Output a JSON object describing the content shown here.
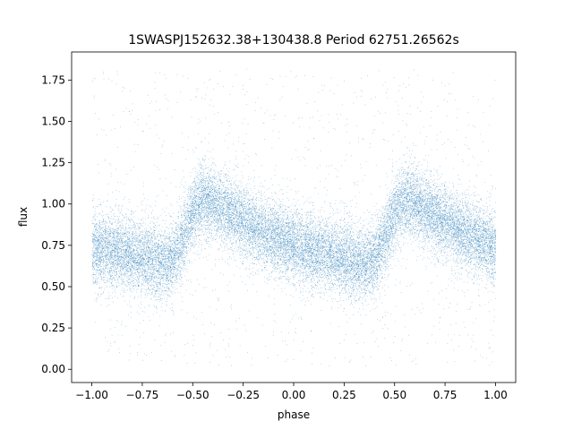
{
  "chart_data": {
    "type": "scatter",
    "title": "1SWASPJ152632.38+130438.8 Period 62751.26562s",
    "xlabel": "phase",
    "ylabel": "flux",
    "xlim": [
      -1.1,
      1.1
    ],
    "ylim": [
      -0.08,
      1.92
    ],
    "xticks": [
      -1.0,
      -0.75,
      -0.5,
      -0.25,
      0.0,
      0.25,
      0.5,
      0.75,
      1.0
    ],
    "xtick_labels": [
      "−1.00",
      "−0.75",
      "−0.50",
      "−0.25",
      "0.00",
      "0.25",
      "0.50",
      "0.75",
      "1.00"
    ],
    "yticks": [
      0.0,
      0.25,
      0.5,
      0.75,
      1.0,
      1.25,
      1.5,
      1.75
    ],
    "ytick_labels": [
      "0.00",
      "0.25",
      "0.50",
      "0.75",
      "1.00",
      "1.25",
      "1.50",
      "1.75"
    ],
    "grid": false,
    "marker_color": "#1f77b4",
    "series": [
      {
        "phase_curve": {
          "x": [
            -1.0,
            -0.9,
            -0.8,
            -0.7,
            -0.65,
            -0.6,
            -0.55,
            -0.5,
            -0.45,
            -0.4,
            -0.3,
            -0.2,
            -0.1,
            0.0,
            0.1,
            0.2,
            0.3,
            0.35,
            0.4,
            0.45,
            0.5,
            0.55,
            0.6,
            0.7,
            0.8,
            0.9,
            1.0
          ],
          "y": [
            0.73,
            0.72,
            0.7,
            0.66,
            0.64,
            0.67,
            0.8,
            0.95,
            1.03,
            1.0,
            0.93,
            0.86,
            0.8,
            0.75,
            0.72,
            0.69,
            0.66,
            0.64,
            0.67,
            0.8,
            0.95,
            1.03,
            1.0,
            0.93,
            0.86,
            0.8,
            0.73
          ]
        },
        "point_count": 24000,
        "scatter_sigma": 0.11,
        "outlier_fraction": 0.05
      }
    ]
  }
}
